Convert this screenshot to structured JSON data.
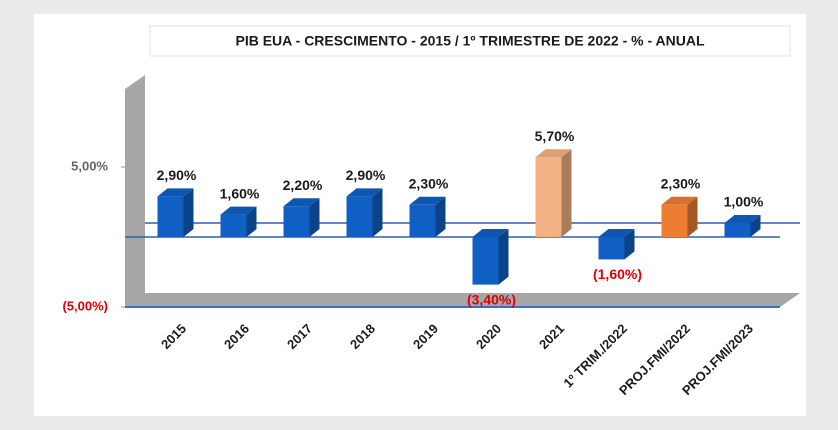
{
  "chart_data": {
    "type": "bar3d",
    "title": "PIB EUA - CRESCIMENTO  - 2015 / 1º TRIMESTRE  DE 2022 - % - ANUAL",
    "categories": [
      "2015",
      "2016",
      "2017",
      "2018",
      "2019",
      "2020",
      "2021",
      "1º TRIM./2022",
      "PROJ.FMI/2022",
      "PROJ.FMI/2023"
    ],
    "values": [
      2.9,
      1.6,
      2.2,
      2.9,
      2.3,
      -3.4,
      5.7,
      -1.6,
      2.3,
      1.0
    ],
    "value_labels": [
      "2,90%",
      "1,60%",
      "2,20%",
      "2,90%",
      "2,30%",
      "(3,40%)",
      "5,70%",
      "(1,60%)",
      "2,30%",
      "1,00%"
    ],
    "colors": [
      "#0f5fc4",
      "#0f5fc4",
      "#0f5fc4",
      "#0f5fc4",
      "#0f5fc4",
      "#0f5fc4",
      "#f4b183",
      "#0f5fc4",
      "#ed7d31",
      "#0f5fc4"
    ],
    "ylim": [
      -5,
      10
    ],
    "yticks": [
      {
        "value": -5,
        "label": "(5,00%)"
      },
      {
        "value": 5,
        "label": "5,00%"
      }
    ]
  }
}
